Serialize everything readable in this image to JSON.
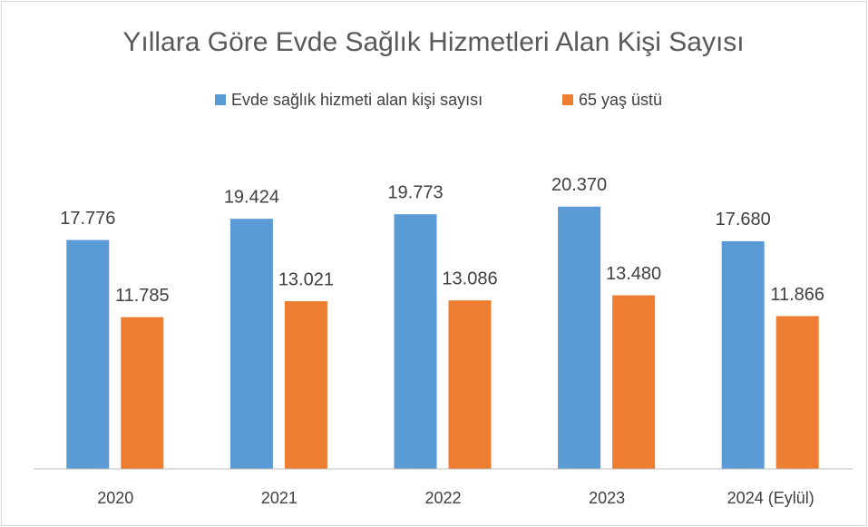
{
  "chart_data": {
    "type": "bar",
    "title": "Yıllara Göre Evde Sağlık Hizmetleri Alan Kişi Sayısı",
    "categories": [
      "2020",
      "2021",
      "2022",
      "2023",
      "2024 (Eylül)"
    ],
    "series": [
      {
        "name": "Evde sağlık hizmeti alan kişi sayısı",
        "color": "#5b9bd5",
        "values": [
          17776,
          19424,
          19773,
          20370,
          17680
        ],
        "value_labels": [
          "17.776",
          "19.424",
          "19.773",
          "20.370",
          "17.680"
        ]
      },
      {
        "name": "65 yaş üstü",
        "color": "#ed7d31",
        "values": [
          11785,
          13021,
          13086,
          13480,
          11866
        ],
        "value_labels": [
          "11.785",
          "13.021",
          "13.086",
          "13.480",
          "11.866"
        ]
      }
    ],
    "ylim": [
      0,
      25000
    ],
    "legend": "top"
  }
}
